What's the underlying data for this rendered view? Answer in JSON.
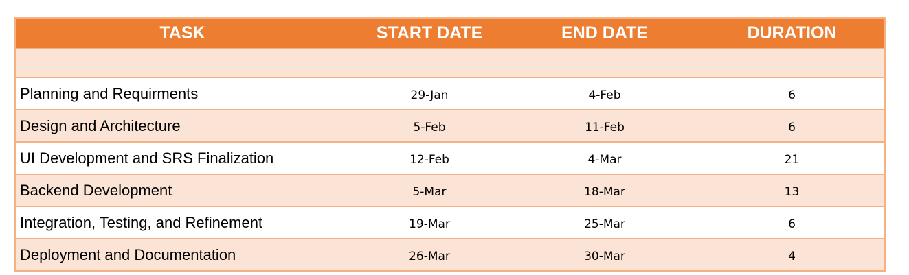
{
  "headers": {
    "task": "TASK",
    "start": "START DATE",
    "end": "END DATE",
    "duration": "DURATION"
  },
  "rows": [
    {
      "task": "Planning and Requirments",
      "start": "29-Jan",
      "end": "4-Feb",
      "duration": "6"
    },
    {
      "task": "Design and Architecture",
      "start": "5-Feb",
      "end": "11-Feb",
      "duration": "6"
    },
    {
      "task": "UI Development and SRS Finalization",
      "start": "12-Feb",
      "end": "4-Mar",
      "duration": "21"
    },
    {
      "task": "Backend Development",
      "start": "5-Mar",
      "end": "18-Mar",
      "duration": "13"
    },
    {
      "task": "Integration, Testing, and Refinement",
      "start": "19-Mar",
      "end": "25-Mar",
      "duration": "6"
    },
    {
      "task": "Deployment and Documentation",
      "start": "26-Mar",
      "end": "30-Mar",
      "duration": "4"
    }
  ],
  "colors": {
    "header_bg": "#ed7d31",
    "header_text": "#ffffff",
    "band_bg": "#fbe3d6",
    "border": "#f4b183"
  }
}
